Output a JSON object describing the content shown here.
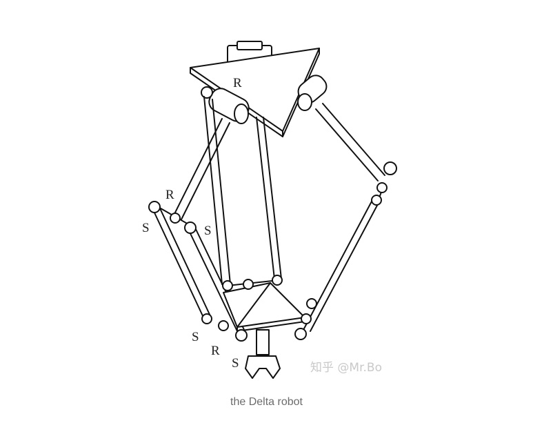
{
  "figure": {
    "labels": {
      "base_R": "R",
      "left_R_upper": "R",
      "left_S_outer": "S",
      "left_S_inner": "S",
      "left_S_lower": "S",
      "left_R_lower": "R",
      "left_S_bottom": "S"
    },
    "watermark": "知乎 @Mr.Bo"
  },
  "caption": "the Delta robot"
}
